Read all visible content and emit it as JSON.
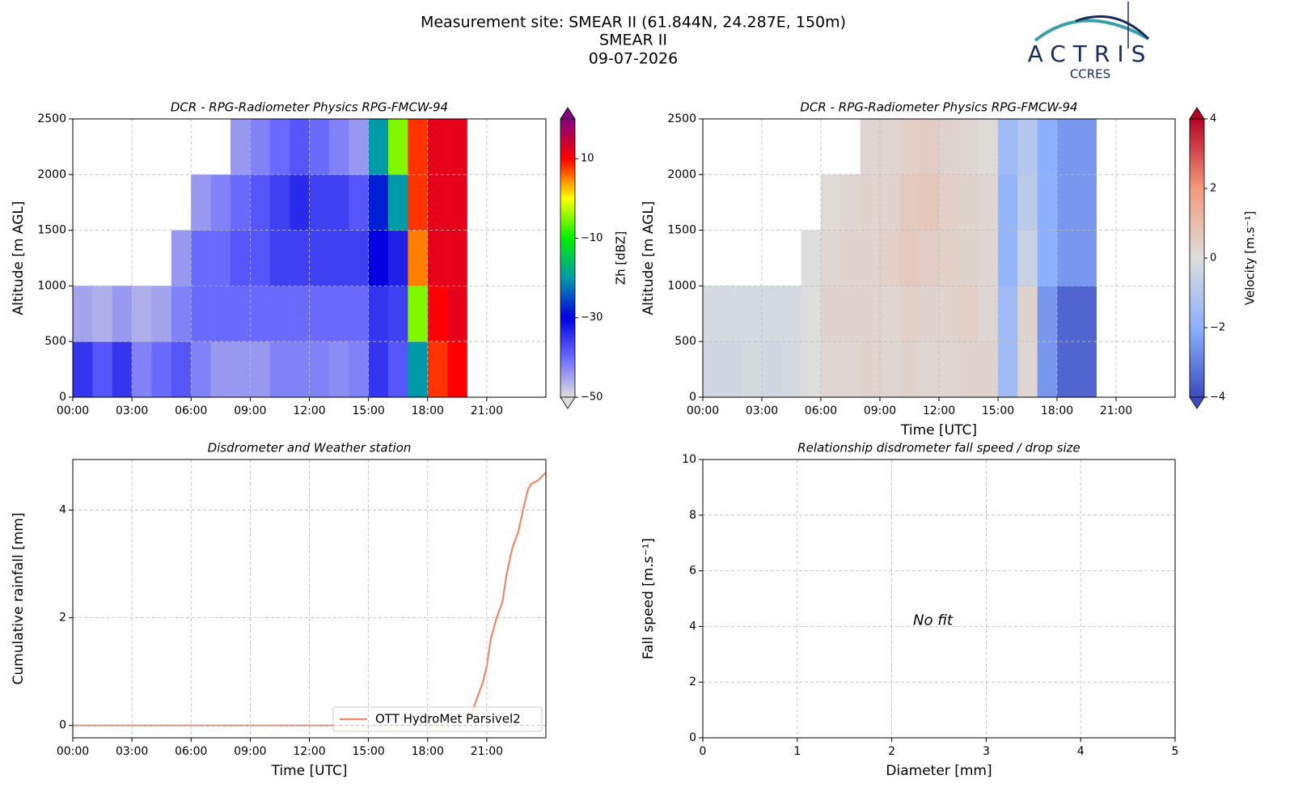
{
  "header": {
    "title": [
      "Measurement site: SMEAR II (61.844N, 24.287E, 150m)",
      "SMEAR II",
      "09-07-2026"
    ]
  },
  "logo": {
    "name": "ACTRIS",
    "sub": "CCRES"
  },
  "chart_data": [
    {
      "type": "heatmap",
      "title": "DCR - RPG-Radiometer Physics RPG-FMCW-94",
      "ylabel": "Altitude [m AGL]",
      "xlim": [
        0,
        24
      ],
      "ylim": [
        0,
        2500
      ],
      "xticks": [
        {
          "value": 0,
          "label": "00:00"
        },
        {
          "value": 3,
          "label": "03:00"
        },
        {
          "value": 6,
          "label": "06:00"
        },
        {
          "value": 9,
          "label": "09:00"
        },
        {
          "value": 12,
          "label": "12:00"
        },
        {
          "value": 15,
          "label": "15:00"
        },
        {
          "value": 18,
          "label": "18:00"
        },
        {
          "value": 21,
          "label": "21:00"
        }
      ],
      "yticks": [
        0,
        500,
        1000,
        1500,
        2000,
        2500
      ],
      "grid": true,
      "x_edges": [
        0,
        1,
        2,
        3,
        4,
        5,
        6,
        7,
        8,
        9,
        10,
        11,
        12,
        13,
        14,
        15,
        16,
        17,
        18,
        19,
        20
      ],
      "y_edges": [
        0,
        500,
        1000,
        1500,
        2000,
        2500
      ],
      "z": [
        [
          -35,
          -38,
          -35,
          -42,
          -40,
          -38,
          -42,
          -44,
          -44,
          -44,
          -42,
          -42,
          -42,
          -43,
          -42,
          -35,
          -38,
          -20,
          8,
          10
        ],
        [
          -45,
          -46,
          -44,
          -46,
          -45,
          -42,
          -40,
          -40,
          -40,
          -40,
          -40,
          -40,
          -40,
          -40,
          -40,
          -35,
          -36,
          -5,
          10,
          12
        ],
        [
          null,
          null,
          null,
          null,
          null,
          -44,
          -40,
          -40,
          -38,
          -38,
          -36,
          -36,
          -36,
          -36,
          -36,
          -30,
          -33,
          5,
          12,
          12
        ],
        [
          null,
          null,
          null,
          null,
          null,
          null,
          -44,
          -42,
          -40,
          -38,
          -36,
          -34,
          -36,
          -36,
          -38,
          -28,
          -20,
          8,
          12,
          12
        ],
        [
          null,
          null,
          null,
          null,
          null,
          null,
          null,
          null,
          -44,
          -42,
          -40,
          -38,
          -40,
          -42,
          -44,
          -20,
          -5,
          8,
          12,
          12
        ]
      ],
      "colorbar": {
        "label": "Zh [dBZ]",
        "lim": [
          -50,
          20
        ],
        "ticks": [
          {
            "value": -50,
            "label": "−50"
          },
          {
            "value": -30,
            "label": "−30"
          },
          {
            "value": -10,
            "label": "−10"
          },
          10
        ],
        "colormap": [
          "#dcdcdc",
          "#6a6aff",
          "#0000e0",
          "#009aa8",
          "#00f000",
          "#ffff00",
          "#ff0000",
          "#800080"
        ]
      }
    },
    {
      "type": "heatmap",
      "title": "DCR - RPG-Radiometer Physics RPG-FMCW-94",
      "xlabel": "Time [UTC]",
      "ylabel": "Altitude [m AGL]",
      "xlim": [
        0,
        24
      ],
      "ylim": [
        0,
        2500
      ],
      "xticks": [
        {
          "value": 0,
          "label": "00:00"
        },
        {
          "value": 3,
          "label": "03:00"
        },
        {
          "value": 6,
          "label": "06:00"
        },
        {
          "value": 9,
          "label": "09:00"
        },
        {
          "value": 12,
          "label": "12:00"
        },
        {
          "value": 15,
          "label": "15:00"
        },
        {
          "value": 18,
          "label": "18:00"
        },
        {
          "value": 21,
          "label": "21:00"
        }
      ],
      "yticks": [
        0,
        500,
        1000,
        1500,
        2000,
        2500
      ],
      "grid": true,
      "x_edges": [
        0,
        1,
        2,
        3,
        4,
        5,
        6,
        7,
        8,
        9,
        10,
        11,
        12,
        13,
        14,
        15,
        16,
        17,
        18,
        19,
        20
      ],
      "y_edges": [
        0,
        500,
        1000,
        1500,
        2000,
        2500
      ],
      "z": [
        [
          -0.3,
          -0.3,
          -0.2,
          -0.3,
          -0.2,
          0,
          0.2,
          0.2,
          0.3,
          0.2,
          0.3,
          0.2,
          0.2,
          0.3,
          0.3,
          -1.5,
          0.2,
          -2.5,
          -3.5,
          -3.5
        ],
        [
          -0.2,
          -0.2,
          -0.2,
          -0.2,
          -0.2,
          0,
          0.3,
          0.3,
          0.3,
          0.2,
          0.4,
          0.3,
          0.3,
          0.4,
          0.2,
          -1.5,
          0.3,
          -2.5,
          -3.5,
          -3.5
        ],
        [
          null,
          null,
          null,
          null,
          null,
          0,
          0.2,
          0.3,
          0.3,
          0.4,
          0.6,
          0.5,
          0.4,
          0.3,
          0.2,
          -1.8,
          -0.5,
          -2,
          -2.5,
          -2.5
        ],
        [
          null,
          null,
          null,
          null,
          null,
          null,
          0.1,
          0.2,
          0.3,
          0.3,
          0.6,
          0.7,
          0.4,
          0.3,
          0.2,
          -1.8,
          -0.8,
          -2,
          -2.5,
          -2.5
        ],
        [
          null,
          null,
          null,
          null,
          null,
          null,
          null,
          null,
          0.2,
          0.2,
          0.4,
          0.5,
          0.3,
          0.2,
          0.1,
          -1.5,
          -1,
          -2,
          -2.5,
          -2.5
        ]
      ],
      "colorbar": {
        "label": "Velocity [m.s⁻¹]",
        "lim": [
          -4,
          4
        ],
        "ticks": [
          {
            "value": -4,
            "label": "−4"
          },
          {
            "value": -2,
            "label": "−2"
          },
          0,
          2,
          4
        ],
        "colormap": [
          "#3b4cc0",
          "#8db0fe",
          "#dddddd",
          "#f49a7b",
          "#b40426"
        ]
      }
    },
    {
      "type": "line",
      "title": "Disdrometer and Weather station",
      "xlabel": "Time [UTC]",
      "ylabel": "Cumulative rainfall [mm]",
      "xlim": [
        0,
        24
      ],
      "ylim": [
        -0.23,
        4.94
      ],
      "xticks": [
        {
          "value": 0,
          "label": "00:00"
        },
        {
          "value": 3,
          "label": "03:00"
        },
        {
          "value": 6,
          "label": "06:00"
        },
        {
          "value": 9,
          "label": "09:00"
        },
        {
          "value": 12,
          "label": "12:00"
        },
        {
          "value": 15,
          "label": "15:00"
        },
        {
          "value": 18,
          "label": "18:00"
        },
        {
          "value": 21,
          "label": "21:00"
        }
      ],
      "yticks": [
        0,
        2,
        4
      ],
      "grid": true,
      "legend": "lower right",
      "x": [
        0,
        20,
        20.3,
        20.6,
        20.8,
        21.0,
        21.2,
        21.5,
        21.8,
        22.0,
        22.3,
        22.6,
        22.9,
        23.1,
        23.3,
        23.6,
        24
      ],
      "series": [
        {
          "name": "OTT HydroMet Parsivel2",
          "color": "#ee8866",
          "values": [
            0,
            0,
            0.3,
            0.6,
            0.8,
            1.1,
            1.6,
            2.0,
            2.3,
            2.8,
            3.3,
            3.6,
            4.1,
            4.4,
            4.5,
            4.55,
            4.7
          ]
        }
      ]
    },
    {
      "type": "scatter",
      "title": "Relationship disdrometer fall speed / drop size",
      "xlabel": "Diameter [mm]",
      "ylabel": "Fall speed [m.s⁻¹]",
      "xlim": [
        0,
        5
      ],
      "ylim": [
        0,
        10
      ],
      "xticks": [
        0,
        1,
        2,
        3,
        4,
        5
      ],
      "yticks": [
        0,
        2,
        4,
        6,
        8,
        10
      ],
      "grid": true,
      "series": [],
      "annotation": "No fit"
    }
  ]
}
